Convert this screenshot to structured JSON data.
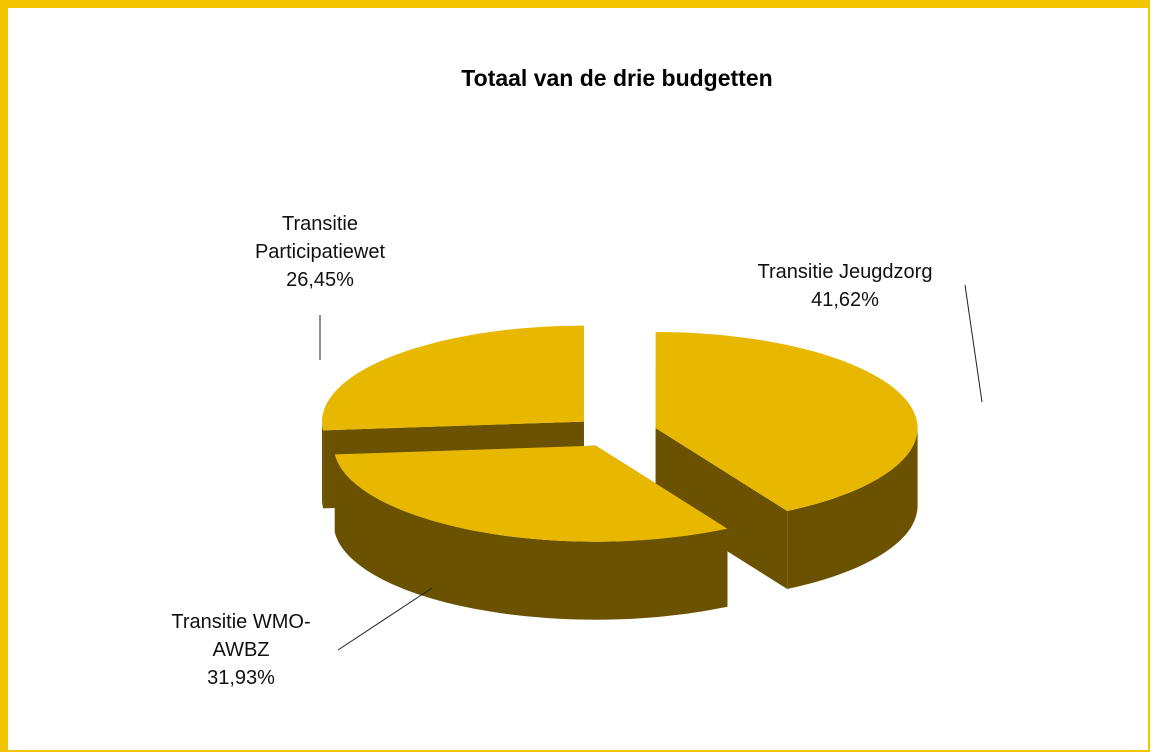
{
  "chart_data": {
    "type": "pie",
    "title": "Totaal van de drie budgetten",
    "categories": [
      "Transitie Jeugdzorg",
      "Transitie WMO-AWBZ",
      "Transitie Participatiewet"
    ],
    "values": [
      41.62,
      31.93,
      26.45
    ],
    "value_labels": [
      "41,62%",
      "31,93%",
      "26,45%"
    ],
    "color": "#e8b800",
    "side_color": "#6b5200",
    "three_d": true,
    "exploded": true
  }
}
